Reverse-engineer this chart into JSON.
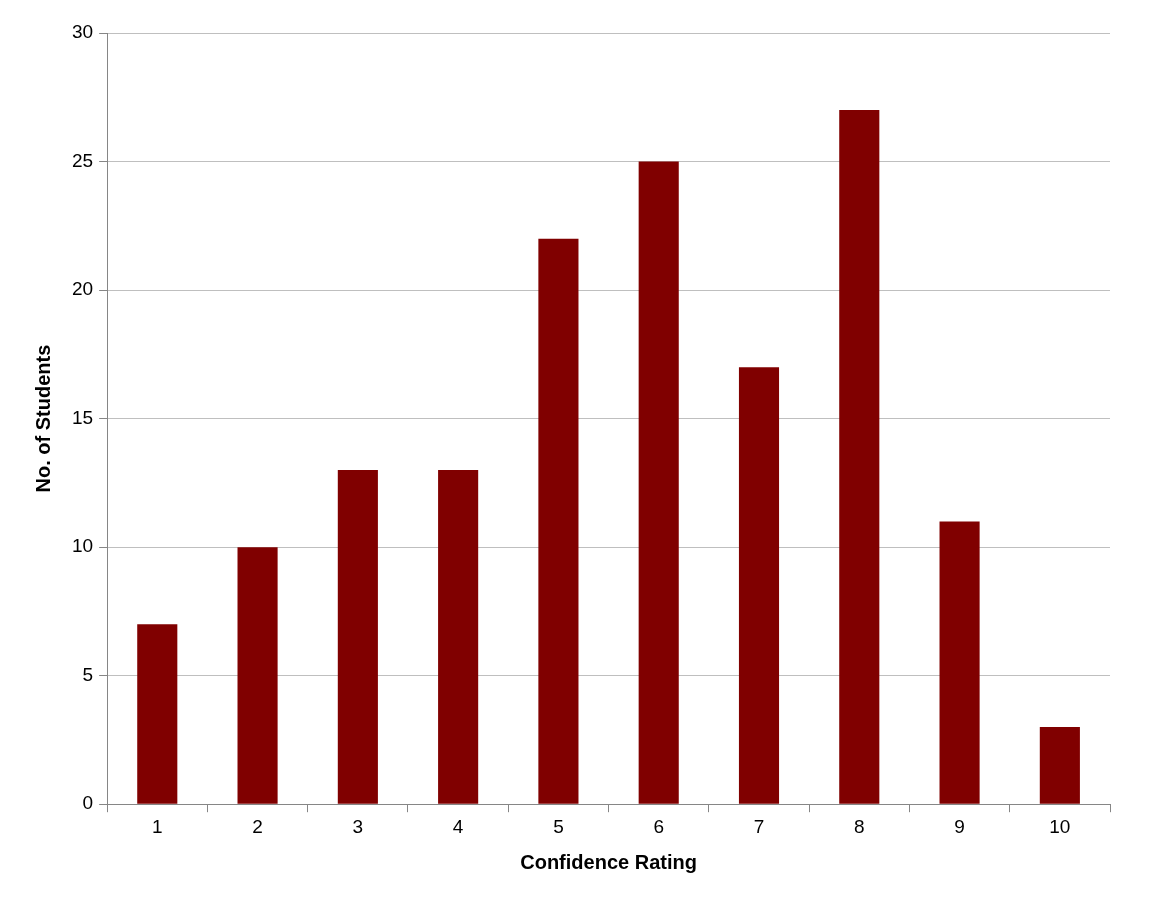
{
  "chart_data": {
    "type": "bar",
    "xlabel": "Confidence Rating",
    "ylabel": "No. of Students",
    "categories": [
      "1",
      "2",
      "3",
      "4",
      "5",
      "6",
      "7",
      "8",
      "9",
      "10"
    ],
    "values": [
      7,
      10,
      13,
      13,
      22,
      25,
      17,
      27,
      11,
      3
    ],
    "color": "#800000",
    "ylim": [
      0,
      30
    ],
    "yticks": [
      0,
      5,
      10,
      15,
      20,
      25,
      30
    ],
    "grid": "y",
    "legend": false
  }
}
